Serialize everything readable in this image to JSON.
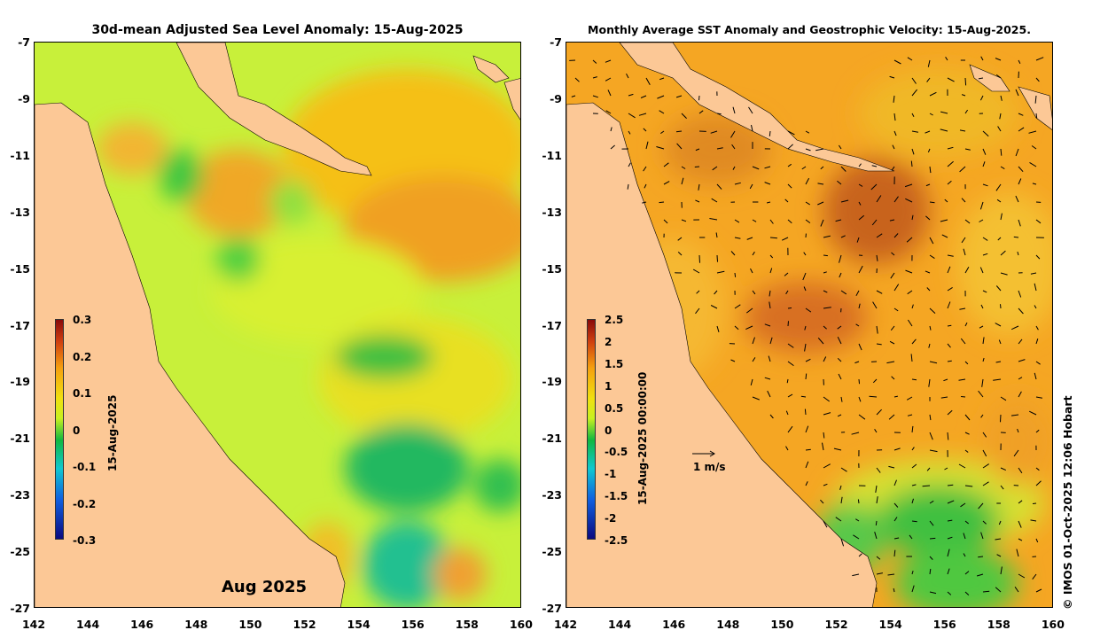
{
  "left_panel": {
    "title": "30d-mean Adjusted Sea Level Anomaly: 15-Aug-2025",
    "colorbar_ticks": [
      "0.3",
      "0.2",
      "0.1",
      "0",
      "-0.1",
      "-0.2",
      "-0.3"
    ],
    "colorbar_label": "15-Aug-2025",
    "month_label": "Aug 2025"
  },
  "right_panel": {
    "title": "Monthly Average SST Anomaly  and Geostrophic Velocity: 15-Aug-2025.",
    "colorbar_ticks": [
      "2.5",
      "2",
      "1.5",
      "1",
      "0.5",
      "0",
      "-0.5",
      "-1",
      "-1.5",
      "-2",
      "-2.5"
    ],
    "colorbar_label": "15-Aug-2025 00:00:00",
    "scale_label": "1 m/s"
  },
  "axes": {
    "lat_ticks": [
      "-7",
      "-9",
      "-11",
      "-13",
      "-15",
      "-17",
      "-19",
      "-21",
      "-23",
      "-25",
      "-27"
    ],
    "lon_ticks": [
      "142",
      "144",
      "146",
      "148",
      "150",
      "152",
      "154",
      "156",
      "158",
      "160"
    ]
  },
  "credit": "© IMOS 01-Oct-2025 12:06 Hobart",
  "colors": {
    "land": "#fcc896",
    "ssla_base": "#c8f03a",
    "sst_base": "#f5a623"
  },
  "icons": {
    "scale": "velocity-scale-arrow-icon"
  }
}
